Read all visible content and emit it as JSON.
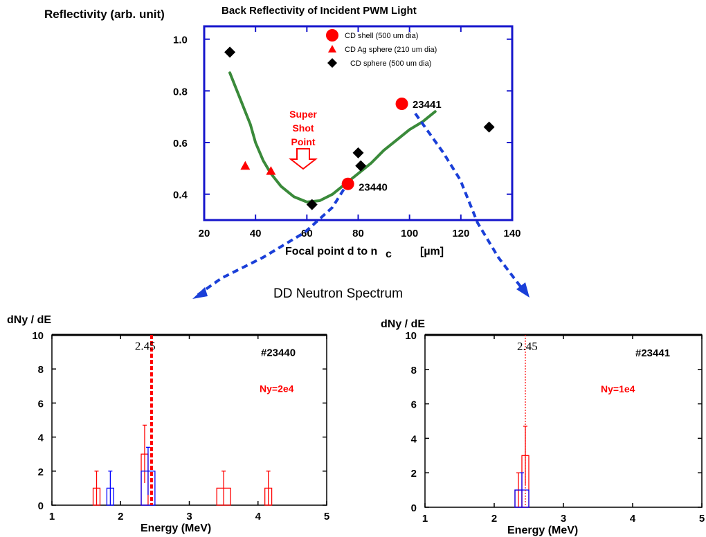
{
  "chart_data": [
    {
      "type": "scatter",
      "title": "Back Reflectivity of Incident PWM Light",
      "ylabel": "Reflectivity (arb. unit)",
      "xlabel": "Focal point  d  to  n",
      "xlabel_sub": "c",
      "xlabel_unit": "[µm]",
      "xlim": [
        20,
        140
      ],
      "ylim": [
        0.3,
        1.05
      ],
      "xticks": [
        "20",
        "40",
        "60",
        "80",
        "100",
        "120",
        "140"
      ],
      "yticks": [
        "0.4",
        "0.6",
        "0.8",
        "1.0"
      ],
      "legend_position": "top-center",
      "series": [
        {
          "name": "CD shell (500 um dia)",
          "marker": "circle",
          "color": "#ff0000",
          "points": [
            {
              "x": 76,
              "y": 0.44
            },
            {
              "x": 97,
              "y": 0.75
            }
          ]
        },
        {
          "name": "CD Ag sphere (210 um dia)",
          "marker": "triangle",
          "color": "#ff0000",
          "points": [
            {
              "x": 36,
              "y": 0.51
            },
            {
              "x": 46,
              "y": 0.49
            }
          ]
        },
        {
          "name": "CD sphere (500 um dia)",
          "marker": "diamond",
          "color": "#000000",
          "points": [
            {
              "x": 30,
              "y": 0.95
            },
            {
              "x": 62,
              "y": 0.36
            },
            {
              "x": 80,
              "y": 0.56
            },
            {
              "x": 81,
              "y": 0.51
            },
            {
              "x": 131,
              "y": 0.66
            }
          ]
        }
      ],
      "trend_curve": {
        "color": "#3a8a3a",
        "points": [
          [
            30,
            0.87
          ],
          [
            32,
            0.82
          ],
          [
            34,
            0.77
          ],
          [
            36,
            0.72
          ],
          [
            38,
            0.67
          ],
          [
            40,
            0.6
          ],
          [
            43,
            0.53
          ],
          [
            46,
            0.48
          ],
          [
            50,
            0.43
          ],
          [
            55,
            0.39
          ],
          [
            60,
            0.37
          ],
          [
            65,
            0.375
          ],
          [
            70,
            0.4
          ],
          [
            75,
            0.44
          ],
          [
            80,
            0.48
          ],
          [
            85,
            0.52
          ],
          [
            90,
            0.57
          ],
          [
            95,
            0.61
          ],
          [
            100,
            0.65
          ],
          [
            105,
            0.68
          ],
          [
            110,
            0.72
          ]
        ]
      },
      "annotations": [
        {
          "text": "23441",
          "x": 99,
          "y": 0.75
        },
        {
          "text": "23440",
          "x": 78,
          "y": 0.43
        }
      ],
      "callout": {
        "lines": [
          "Super",
          "Shot",
          "Point"
        ],
        "color": "#ff0000"
      }
    },
    {
      "type": "bar",
      "title": "DD Neutron Spectrum",
      "shot": "#23440",
      "ny_label": "Ny=2e4",
      "ylabel": "dNy / dE",
      "xlabel": "Energy (MeV)",
      "xlim": [
        1,
        5
      ],
      "ylim": [
        0,
        10
      ],
      "xticks": [
        "1",
        "2",
        "3",
        "4",
        "5"
      ],
      "yticks": [
        "0",
        "2",
        "4",
        "6",
        "8",
        "10"
      ],
      "marker_line": {
        "x": 2.45,
        "label": "2.45",
        "color": "#ff0000",
        "style": "dashed"
      },
      "series": [
        {
          "name": "red",
          "color": "#ff0000",
          "bars": [
            {
              "x0": 1.6,
              "x1": 1.7,
              "value": 1,
              "err": 1
            },
            {
              "x0": 2.3,
              "x1": 2.4,
              "value": 3,
              "err": 1.7
            },
            {
              "x0": 3.4,
              "x1": 3.6,
              "value": 1,
              "err": 1
            },
            {
              "x0": 4.1,
              "x1": 4.2,
              "value": 1,
              "err": 1
            }
          ]
        },
        {
          "name": "blue",
          "color": "#0000ff",
          "bars": [
            {
              "x0": 1.8,
              "x1": 1.9,
              "value": 1,
              "err": 1
            },
            {
              "x0": 2.3,
              "x1": 2.5,
              "value": 2,
              "err": 1.4
            }
          ]
        }
      ]
    },
    {
      "type": "bar",
      "shot": "#23441",
      "ny_label": "Ny=1e4",
      "ylabel": "dNy / dE",
      "xlabel": "Energy (MeV)",
      "xlim": [
        1,
        5
      ],
      "ylim": [
        0,
        10
      ],
      "xticks": [
        "1",
        "2",
        "3",
        "4",
        "5"
      ],
      "yticks": [
        "0",
        "2",
        "4",
        "6",
        "8",
        "10"
      ],
      "marker_line": {
        "x": 2.45,
        "label": "2.45",
        "color": "#ff0000",
        "style": "dotted"
      },
      "series": [
        {
          "name": "red",
          "color": "#ff0000",
          "bars": [
            {
              "x0": 2.3,
              "x1": 2.4,
              "value": 1,
              "err": 1
            },
            {
              "x0": 2.4,
              "x1": 2.5,
              "value": 3,
              "err": 1.7
            }
          ]
        },
        {
          "name": "blue",
          "color": "#0000ff",
          "bars": [
            {
              "x0": 2.3,
              "x1": 2.5,
              "value": 1,
              "err": 1
            }
          ]
        }
      ]
    }
  ]
}
